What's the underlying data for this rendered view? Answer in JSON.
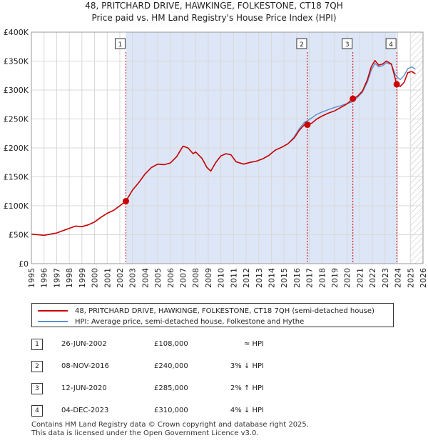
{
  "title_line1": "48, PRITCHARD DRIVE, HAWKINGE, FOLKESTONE, CT18 7QH",
  "title_line2": "Price paid vs. HM Land Registry's House Price Index (HPI)",
  "colors": {
    "property": "#cc0000",
    "hpi": "#5b8fd0",
    "shade": "#dde6f6",
    "grid": "#d8d8d8"
  },
  "chart_data": {
    "type": "line",
    "xlim": [
      1995,
      2026
    ],
    "ylim": [
      0,
      400000
    ],
    "y_ticks": [
      {
        "value": 0,
        "label": "£0"
      },
      {
        "value": 50000,
        "label": "£50K"
      },
      {
        "value": 100000,
        "label": "£100K"
      },
      {
        "value": 150000,
        "label": "£150K"
      },
      {
        "value": 200000,
        "label": "£200K"
      },
      {
        "value": 250000,
        "label": "£250K"
      },
      {
        "value": 300000,
        "label": "£300K"
      },
      {
        "value": 350000,
        "label": "£350K"
      },
      {
        "value": 400000,
        "label": "£400K"
      }
    ],
    "x_ticks": [
      "1995",
      "1996",
      "1997",
      "1998",
      "1999",
      "2000",
      "2001",
      "2002",
      "2003",
      "2004",
      "2005",
      "2006",
      "2007",
      "2008",
      "2009",
      "2010",
      "2011",
      "2012",
      "2013",
      "2014",
      "2015",
      "2016",
      "2017",
      "2018",
      "2019",
      "2020",
      "2021",
      "2022",
      "2023",
      "2024",
      "2025",
      "2026"
    ],
    "shaded_period": [
      2002.48,
      2023.92
    ],
    "future_hatch_from": 2025.0,
    "series": [
      {
        "name": "48, PRITCHARD DRIVE, HAWKINGE, FOLKESTONE, CT18 7QH (semi-detached house)",
        "color": "#cc0000",
        "points": [
          [
            1995,
            51000
          ],
          [
            1995.5,
            50000
          ],
          [
            1996,
            49000
          ],
          [
            1996.5,
            51000
          ],
          [
            1997,
            53000
          ],
          [
            1997.5,
            57000
          ],
          [
            1998,
            61000
          ],
          [
            1998.5,
            65000
          ],
          [
            1999,
            64000
          ],
          [
            1999.5,
            67000
          ],
          [
            2000,
            72000
          ],
          [
            2000.5,
            80000
          ],
          [
            2001,
            87000
          ],
          [
            2001.5,
            92000
          ],
          [
            2002,
            100000
          ],
          [
            2002.48,
            108000
          ],
          [
            2003,
            127000
          ],
          [
            2003.5,
            140000
          ],
          [
            2004,
            155000
          ],
          [
            2004.5,
            166000
          ],
          [
            2005,
            172000
          ],
          [
            2005.5,
            171000
          ],
          [
            2006,
            174000
          ],
          [
            2006.5,
            185000
          ],
          [
            2007,
            203000
          ],
          [
            2007.4,
            200000
          ],
          [
            2007.8,
            190000
          ],
          [
            2008,
            193000
          ],
          [
            2008.5,
            182000
          ],
          [
            2008.9,
            166000
          ],
          [
            2009.2,
            160000
          ],
          [
            2009.6,
            175000
          ],
          [
            2010,
            186000
          ],
          [
            2010.4,
            190000
          ],
          [
            2010.8,
            188000
          ],
          [
            2011.2,
            176000
          ],
          [
            2011.8,
            172000
          ],
          [
            2012.3,
            175000
          ],
          [
            2012.8,
            177000
          ],
          [
            2013.3,
            181000
          ],
          [
            2013.8,
            187000
          ],
          [
            2014.3,
            196000
          ],
          [
            2014.8,
            201000
          ],
          [
            2015.3,
            207000
          ],
          [
            2015.8,
            217000
          ],
          [
            2016.2,
            230000
          ],
          [
            2016.6,
            240000
          ],
          [
            2016.85,
            240000
          ],
          [
            2017.2,
            243000
          ],
          [
            2017.6,
            250000
          ],
          [
            2018,
            255000
          ],
          [
            2018.5,
            260000
          ],
          [
            2019,
            264000
          ],
          [
            2019.5,
            270000
          ],
          [
            2019.9,
            275000
          ],
          [
            2020.2,
            280000
          ],
          [
            2020.45,
            285000
          ],
          [
            2020.8,
            289000
          ],
          [
            2021.2,
            298000
          ],
          [
            2021.6,
            318000
          ],
          [
            2021.9,
            340000
          ],
          [
            2022.2,
            351000
          ],
          [
            2022.5,
            343000
          ],
          [
            2022.8,
            345000
          ],
          [
            2023.1,
            350000
          ],
          [
            2023.5,
            345000
          ],
          [
            2023.8,
            320000
          ],
          [
            2023.92,
            310000
          ],
          [
            2024.2,
            306000
          ],
          [
            2024.5,
            313000
          ],
          [
            2024.8,
            330000
          ],
          [
            2025.1,
            332000
          ],
          [
            2025.4,
            328000
          ]
        ]
      },
      {
        "name": "HPI: Average price, semi-detached house, Folkestone and Hythe",
        "color": "#5b8fd0",
        "points": [
          [
            1995,
            51000
          ],
          [
            1995.5,
            50000
          ],
          [
            1996,
            49000
          ],
          [
            1996.5,
            51000
          ],
          [
            1997,
            53000
          ],
          [
            1997.5,
            57000
          ],
          [
            1998,
            61000
          ],
          [
            1998.5,
            65000
          ],
          [
            1999,
            64000
          ],
          [
            1999.5,
            67000
          ],
          [
            2000,
            72000
          ],
          [
            2000.5,
            80000
          ],
          [
            2001,
            87000
          ],
          [
            2001.5,
            92000
          ],
          [
            2002,
            100000
          ],
          [
            2002.48,
            108500
          ],
          [
            2003,
            127000
          ],
          [
            2003.5,
            140000
          ],
          [
            2004,
            155000
          ],
          [
            2004.5,
            166000
          ],
          [
            2005,
            172000
          ],
          [
            2005.5,
            171000
          ],
          [
            2006,
            174000
          ],
          [
            2006.5,
            185000
          ],
          [
            2007,
            203000
          ],
          [
            2007.4,
            200000
          ],
          [
            2007.8,
            190000
          ],
          [
            2008,
            193000
          ],
          [
            2008.5,
            182000
          ],
          [
            2008.9,
            166000
          ],
          [
            2009.2,
            160000
          ],
          [
            2009.6,
            175000
          ],
          [
            2010,
            186000
          ],
          [
            2010.4,
            190000
          ],
          [
            2010.8,
            188000
          ],
          [
            2011.2,
            176000
          ],
          [
            2011.8,
            172000
          ],
          [
            2012.3,
            175000
          ],
          [
            2012.8,
            177000
          ],
          [
            2013.3,
            181000
          ],
          [
            2013.8,
            187000
          ],
          [
            2014.3,
            196000
          ],
          [
            2014.8,
            201000
          ],
          [
            2015.3,
            207000
          ],
          [
            2015.8,
            219000
          ],
          [
            2016.2,
            233000
          ],
          [
            2016.6,
            244000
          ],
          [
            2016.85,
            247000
          ],
          [
            2017.2,
            252000
          ],
          [
            2017.6,
            258000
          ],
          [
            2018,
            262000
          ],
          [
            2018.5,
            266000
          ],
          [
            2019,
            270000
          ],
          [
            2019.5,
            273000
          ],
          [
            2019.9,
            276000
          ],
          [
            2020.2,
            278000
          ],
          [
            2020.45,
            280000
          ],
          [
            2020.8,
            287000
          ],
          [
            2021.2,
            296000
          ],
          [
            2021.6,
            314000
          ],
          [
            2021.9,
            334000
          ],
          [
            2022.2,
            346000
          ],
          [
            2022.5,
            340000
          ],
          [
            2022.8,
            342000
          ],
          [
            2023.1,
            347000
          ],
          [
            2023.5,
            344000
          ],
          [
            2023.8,
            327000
          ],
          [
            2023.92,
            323000
          ],
          [
            2024.2,
            318000
          ],
          [
            2024.5,
            325000
          ],
          [
            2024.8,
            337000
          ],
          [
            2025.1,
            340000
          ],
          [
            2025.4,
            336000
          ]
        ]
      }
    ],
    "sales": [
      {
        "id": "1",
        "x": 2002.48,
        "price": 108000,
        "date": "26-JUN-2002",
        "price_label": "£108,000",
        "hpi": "≈ HPI"
      },
      {
        "id": "2",
        "x": 2016.85,
        "price": 240000,
        "date": "08-NOV-2016",
        "price_label": "£240,000",
        "hpi": "3% ↓ HPI"
      },
      {
        "id": "3",
        "x": 2020.45,
        "price": 285000,
        "date": "12-JUN-2020",
        "price_label": "£285,000",
        "hpi": "2% ↑ HPI"
      },
      {
        "id": "4",
        "x": 2023.92,
        "price": 310000,
        "date": "04-DEC-2023",
        "price_label": "£310,000",
        "hpi": "4% ↓ HPI"
      }
    ]
  },
  "legend": {
    "property": "48, PRITCHARD DRIVE, HAWKINGE, FOLKESTONE, CT18 7QH (semi-detached house)",
    "hpi": "HPI: Average price, semi-detached house, Folkestone and Hythe"
  },
  "footer": {
    "line1": "Contains HM Land Registry data © Crown copyright and database right 2025.",
    "line2": "This data is licensed under the Open Government Licence v3.0."
  }
}
